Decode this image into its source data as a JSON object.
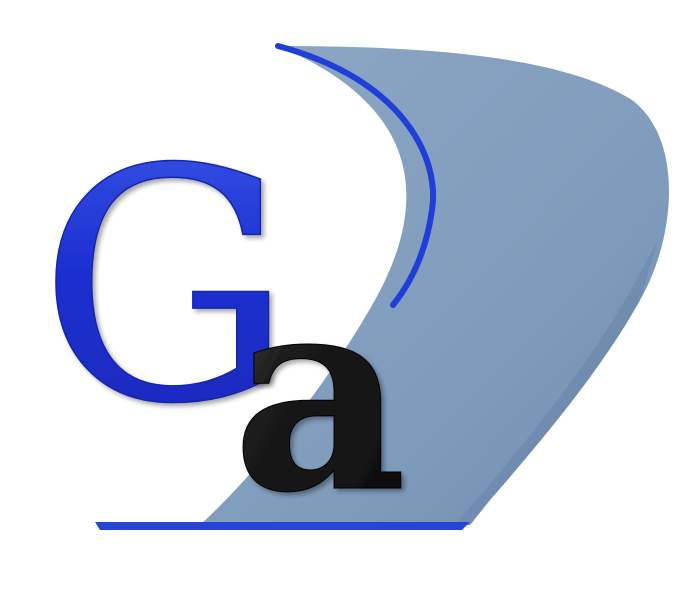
{
  "logo": {
    "letters": {
      "first": "G",
      "second": "a"
    },
    "colors": {
      "background": "#ffffff",
      "swoosh_fill": "#7f9bbb",
      "swoosh_shadow": "#5f7d9f",
      "accent_blue": "#1f3fd8",
      "letter_g": "#1d2fd0",
      "letter_g_highlight": "#6f8df8",
      "letter_a": "#141414",
      "letter_a_highlight": "#7a7a7a"
    }
  }
}
